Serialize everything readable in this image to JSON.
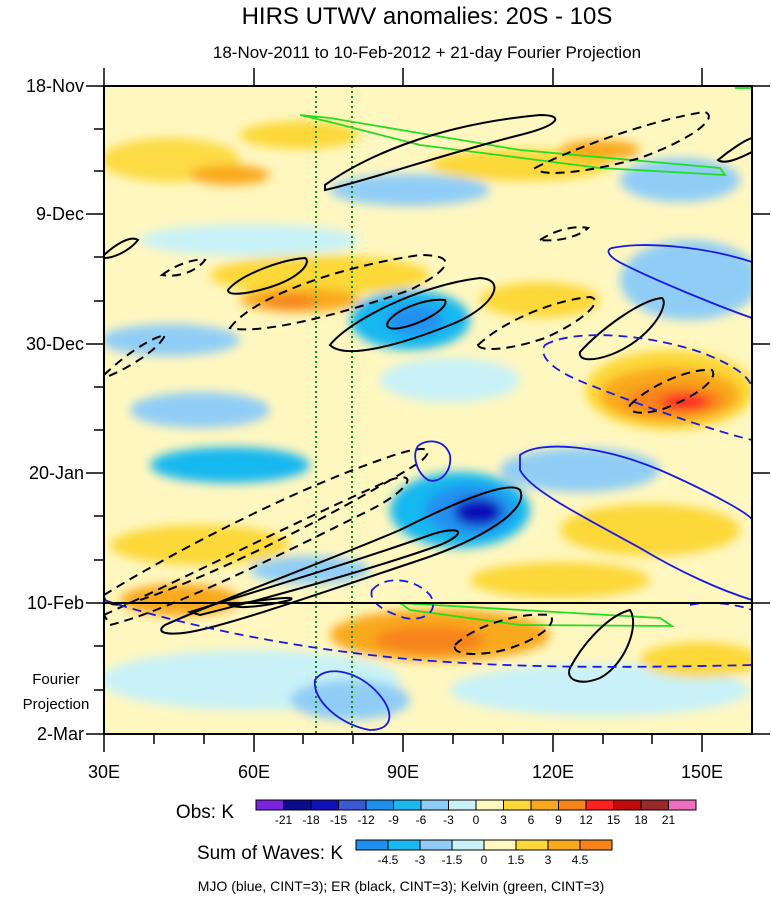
{
  "chart_data": {
    "type": "heatmap",
    "title": "HIRS UTWV anomalies: 20S - 10S",
    "subtitle": "18-Nov-2011 to 10-Feb-2012 + 21-day Fourier Projection",
    "x_ticks": [
      "30E",
      "60E",
      "90E",
      "120E",
      "150E"
    ],
    "x_tick_values": [
      30,
      60,
      90,
      120,
      150
    ],
    "xlim": [
      30,
      160
    ],
    "y_ticks": [
      "18-Nov",
      "9-Dec",
      "30-Dec",
      "20-Jan",
      "10-Feb",
      "2-Mar"
    ],
    "y_tick_days": [
      0,
      21,
      42,
      63,
      84,
      105
    ],
    "ylim_days": [
      0,
      105
    ],
    "projection_label_line1": "Fourier",
    "projection_label_line2": "Projection",
    "projection_start_day": 84,
    "reference_lines_lon": [
      72,
      80
    ],
    "obs_colorbar": {
      "label": "Obs: K",
      "levels": [
        "-21",
        "-18",
        "-15",
        "-12",
        "-9",
        "-6",
        "-3",
        "0",
        "3",
        "6",
        "9",
        "12",
        "15",
        "18",
        "21"
      ],
      "colors": [
        "#7a24e0",
        "#0c0b8c",
        "#1010b8",
        "#3c56d8",
        "#2090f0",
        "#18b8f0",
        "#90cdf6",
        "#c8f2f8",
        "#fff7c0",
        "#fcd838",
        "#f9a91c",
        "#f7831d",
        "#ff2020",
        "#c40b0b",
        "#9a2a2a",
        "#f06ec0"
      ]
    },
    "waves_colorbar": {
      "label": "Sum of Waves: K",
      "levels": [
        "-4.5",
        "-3",
        "-1.5",
        "0",
        "1.5",
        "3",
        "4.5"
      ],
      "colors": [
        "#2090f0",
        "#18b8f0",
        "#90cdf6",
        "#c8f2f8",
        "#fff7c0",
        "#fcd838",
        "#f9a91c",
        "#f7831d"
      ]
    },
    "legend_note": "MJO (blue, CINT=3); ER (black, CINT=3); Kelvin (green, CINT=3)",
    "series_colors": {
      "MJO": "#1a1adc",
      "ER": "#000000",
      "Kelvin": "#22dd22"
    }
  }
}
